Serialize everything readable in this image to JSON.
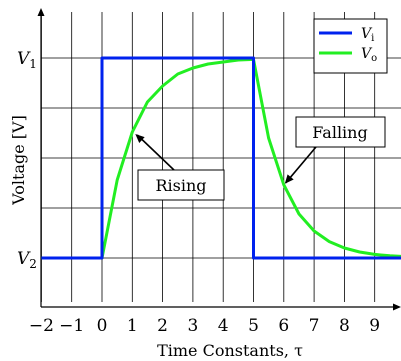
{
  "chart_data": {
    "type": "line",
    "xlabel": "Time Constants, τ",
    "ylabel": "Voltage [V]",
    "xlim": [
      -2,
      10
    ],
    "ylim": [
      0,
      1.2
    ],
    "x_ticks": [
      -2,
      -1,
      0,
      1,
      2,
      3,
      4,
      5,
      6,
      7,
      8,
      9
    ],
    "x_tick_labels": [
      "−2",
      "−1",
      "0",
      "1",
      "2",
      "3",
      "4",
      "5",
      "6",
      "7",
      "8",
      "9"
    ],
    "y_ticks": [
      {
        "value": 1,
        "label_main": "V",
        "label_sub": "1"
      },
      {
        "value": 0,
        "label_main": "V",
        "label_sub": "2"
      }
    ],
    "grid": true,
    "legend_position": "top-right",
    "series": [
      {
        "name_main": "V",
        "name_sub": "i",
        "color": "#0022ee",
        "x": [
          -2,
          0,
          0,
          5,
          5,
          10
        ],
        "y": [
          0,
          0,
          1,
          1,
          0,
          0
        ]
      },
      {
        "name_main": "V",
        "name_sub": "o",
        "color": "#22ee22",
        "x": [
          -2,
          0,
          0.5,
          1,
          1.5,
          2,
          2.5,
          3,
          3.5,
          4,
          4.5,
          5,
          5.5,
          6,
          6.5,
          7,
          7.5,
          8,
          8.5,
          9,
          9.5,
          10
        ],
        "y": [
          0,
          0,
          0.39,
          0.63,
          0.78,
          0.86,
          0.92,
          0.95,
          0.97,
          0.98,
          0.99,
          0.993,
          0.6,
          0.366,
          0.22,
          0.135,
          0.082,
          0.05,
          0.03,
          0.018,
          0.011,
          0.007
        ]
      }
    ],
    "annotations": [
      {
        "text": "Rising",
        "point": [
          1,
          0.63
        ]
      },
      {
        "text": "Falling",
        "point": [
          6,
          0.366
        ]
      }
    ]
  }
}
